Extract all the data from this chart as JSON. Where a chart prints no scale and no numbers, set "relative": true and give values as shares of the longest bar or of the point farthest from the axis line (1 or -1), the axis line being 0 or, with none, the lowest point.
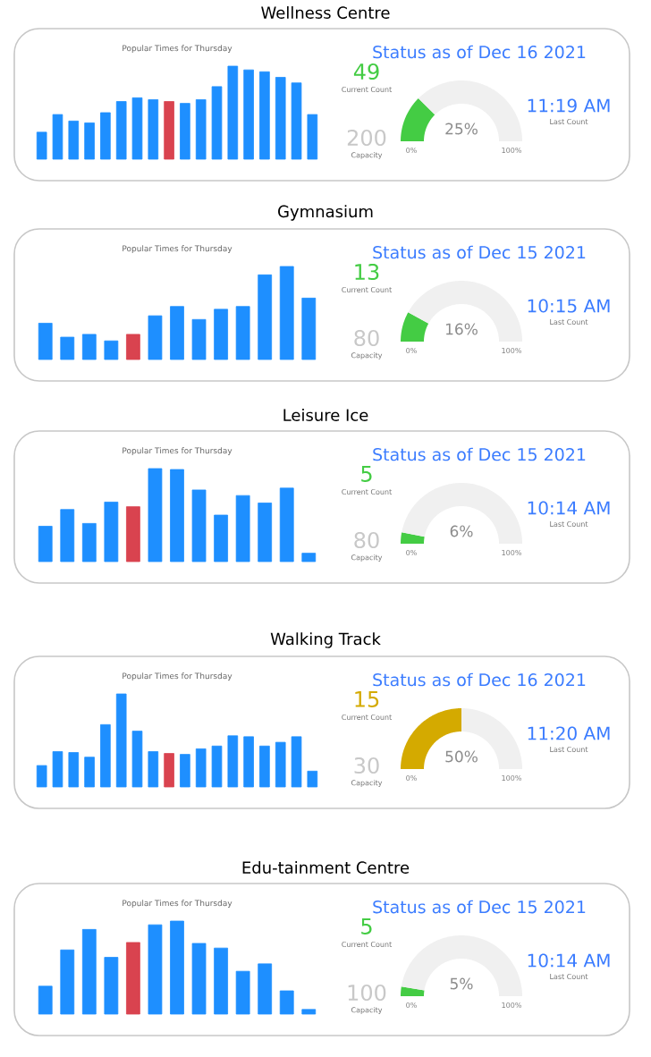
{
  "chart_data": [
    {
      "type": "other",
      "title": "Wellness Centre",
      "subtitle": "Status as of Dec 16 2021",
      "annotations": [
        "49",
        "Current Count",
        "200",
        "Capacity",
        "11:19 AM",
        "Last Count"
      ],
      "colors": [
        "#44cc44",
        "#c8c8c8",
        "#3b7cff"
      ]
    },
    {
      "type": "bar",
      "title": "Popular Times for Thursday",
      "relative": true,
      "categories": [
        null,
        null,
        null,
        null,
        null,
        null,
        null,
        null,
        null,
        null,
        null,
        null,
        null,
        null,
        null,
        null,
        null,
        null
      ],
      "values": [
        0.29,
        0.48,
        0.41,
        0.39,
        0.5,
        0.62,
        0.66,
        0.64,
        0.62,
        0.6,
        0.64,
        0.78,
        1,
        0.96,
        0.94,
        0.88,
        0.82,
        0.48
      ],
      "colors": [
        "#1e8fff",
        "#1e8fff",
        "#1e8fff",
        "#1e8fff",
        "#1e8fff",
        "#1e8fff",
        "#1e8fff",
        "#1e8fff",
        "#d9434f",
        "#1e8fff",
        "#1e8fff",
        "#1e8fff",
        "#1e8fff",
        "#1e8fff",
        "#1e8fff",
        "#1e8fff",
        "#1e8fff",
        "#1e8fff"
      ]
    },
    {
      "type": "donut",
      "categories": [
        null,
        null
      ],
      "values": [
        25,
        75
      ],
      "colors": [
        "#44cc44",
        "#f0f0f0"
      ],
      "annotations": [
        "25%",
        "0%",
        "100%"
      ]
    },
    {
      "type": "other",
      "title": "Gymnasium",
      "subtitle": "Status as of Dec 15 2021",
      "annotations": [
        "13",
        "Current Count",
        "80",
        "Capacity",
        "10:15 AM",
        "Last Count"
      ],
      "colors": [
        "#44cc44",
        "#c8c8c8",
        "#3b7cff"
      ]
    },
    {
      "type": "bar",
      "title": "Popular Times for Thursday",
      "relative": true,
      "categories": [
        null,
        null,
        null,
        null,
        null,
        null,
        null,
        null,
        null,
        null,
        null,
        null,
        null
      ],
      "values": [
        0.39,
        0.24,
        0.27,
        0.2,
        0.27,
        0.47,
        0.57,
        0.43,
        0.54,
        0.57,
        0.91,
        1,
        0.66
      ],
      "colors": [
        "#1e8fff",
        "#1e8fff",
        "#1e8fff",
        "#1e8fff",
        "#d9434f",
        "#1e8fff",
        "#1e8fff",
        "#1e8fff",
        "#1e8fff",
        "#1e8fff",
        "#1e8fff",
        "#1e8fff",
        "#1e8fff"
      ]
    },
    {
      "type": "donut",
      "categories": [
        null,
        null
      ],
      "values": [
        16,
        84
      ],
      "colors": [
        "#44cc44",
        "#f0f0f0"
      ],
      "annotations": [
        "16%",
        "0%",
        "100%"
      ]
    },
    {
      "type": "other",
      "title": "Leisure Ice",
      "subtitle": "Status as of Dec 15 2021",
      "annotations": [
        "5",
        "Current Count",
        "80",
        "Capacity",
        "10:14 AM",
        "Last Count"
      ],
      "colors": [
        "#44cc44",
        "#c8c8c8",
        "#3b7cff"
      ]
    },
    {
      "type": "bar",
      "title": "Popular Times for Thursday",
      "relative": true,
      "categories": [
        null,
        null,
        null,
        null,
        null,
        null,
        null,
        null,
        null,
        null,
        null,
        null,
        null
      ],
      "values": [
        0.38,
        0.56,
        0.41,
        0.64,
        0.59,
        1,
        0.99,
        0.77,
        0.5,
        0.71,
        0.63,
        0.79,
        0.09
      ],
      "colors": [
        "#1e8fff",
        "#1e8fff",
        "#1e8fff",
        "#1e8fff",
        "#d9434f",
        "#1e8fff",
        "#1e8fff",
        "#1e8fff",
        "#1e8fff",
        "#1e8fff",
        "#1e8fff",
        "#1e8fff",
        "#1e8fff"
      ]
    },
    {
      "type": "donut",
      "categories": [
        null,
        null
      ],
      "values": [
        6,
        94
      ],
      "colors": [
        "#44cc44",
        "#f0f0f0"
      ],
      "annotations": [
        "6%",
        "0%",
        "100%"
      ]
    },
    {
      "type": "other",
      "title": "Walking Track",
      "subtitle": "Status as of Dec 16 2021",
      "annotations": [
        "15",
        "Current Count",
        "30",
        "Capacity",
        "11:20 AM",
        "Last Count"
      ],
      "colors": [
        "#d4aa00",
        "#c8c8c8",
        "#3b7cff"
      ]
    },
    {
      "type": "bar",
      "title": "Popular Times for Thursday",
      "relative": true,
      "categories": [
        null,
        null,
        null,
        null,
        null,
        null,
        null,
        null,
        null,
        null,
        null,
        null,
        null,
        null,
        null,
        null,
        null,
        null
      ],
      "values": [
        0.23,
        0.38,
        0.37,
        0.32,
        0.67,
        1,
        0.6,
        0.38,
        0.36,
        0.35,
        0.41,
        0.44,
        0.55,
        0.54,
        0.44,
        0.48,
        0.54,
        0.17
      ],
      "colors": [
        "#1e8fff",
        "#1e8fff",
        "#1e8fff",
        "#1e8fff",
        "#1e8fff",
        "#1e8fff",
        "#1e8fff",
        "#1e8fff",
        "#d9434f",
        "#1e8fff",
        "#1e8fff",
        "#1e8fff",
        "#1e8fff",
        "#1e8fff",
        "#1e8fff",
        "#1e8fff",
        "#1e8fff",
        "#1e8fff"
      ]
    },
    {
      "type": "donut",
      "categories": [
        null,
        null
      ],
      "values": [
        50,
        50
      ],
      "colors": [
        "#d4aa00",
        "#f0f0f0"
      ],
      "annotations": [
        "50%",
        "0%",
        "100%"
      ]
    },
    {
      "type": "other",
      "title": "Edu-tainment Centre",
      "subtitle": "Status as of Dec 15 2021",
      "annotations": [
        "5",
        "Current Count",
        "100",
        "Capacity",
        "10:14 AM",
        "Last Count"
      ],
      "colors": [
        "#44cc44",
        "#c8c8c8",
        "#3b7cff"
      ]
    },
    {
      "type": "bar",
      "title": "Popular Times for Thursday",
      "relative": true,
      "categories": [
        null,
        null,
        null,
        null,
        null,
        null,
        null,
        null,
        null,
        null,
        null,
        null,
        null
      ],
      "values": [
        0.3,
        0.69,
        0.91,
        0.61,
        0.77,
        0.96,
        1,
        0.76,
        0.71,
        0.46,
        0.54,
        0.25,
        0.05
      ],
      "colors": [
        "#1e8fff",
        "#1e8fff",
        "#1e8fff",
        "#1e8fff",
        "#d9434f",
        "#1e8fff",
        "#1e8fff",
        "#1e8fff",
        "#1e8fff",
        "#1e8fff",
        "#1e8fff",
        "#1e8fff",
        "#1e8fff"
      ]
    },
    {
      "type": "donut",
      "categories": [
        null,
        null
      ],
      "values": [
        5,
        95
      ],
      "colors": [
        "#44cc44",
        "#f0f0f0"
      ],
      "annotations": [
        "5%",
        "0%",
        "100%"
      ]
    }
  ]
}
